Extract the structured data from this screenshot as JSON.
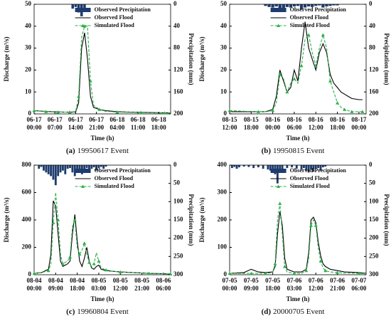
{
  "chart_data": [
    {
      "type": "line",
      "panel_label": "(a)",
      "caption": "19950617 Event",
      "x_label": "Time (h)",
      "y_label": "Discharge (m³/s)",
      "y2_label": "Precipitation (mm)",
      "xlim": [
        0,
        46
      ],
      "ylim": [
        0,
        50
      ],
      "y2lim": [
        0,
        200
      ],
      "yticks": [
        0,
        10,
        20,
        30,
        40,
        50
      ],
      "y2ticks": [
        0,
        40,
        80,
        120,
        160,
        200
      ],
      "xticks": [
        {
          "value": 0,
          "label": "06-17 00:00"
        },
        {
          "value": 7,
          "label": "06-17 07:00"
        },
        {
          "value": 14,
          "label": "06-17 14:00"
        },
        {
          "value": 21,
          "label": "06-17 21:00"
        },
        {
          "value": 28,
          "label": "06-18 04:00"
        },
        {
          "value": 35,
          "label": "06-18 11:00"
        },
        {
          "value": 42,
          "label": "06-18 18:00"
        }
      ],
      "series": [
        {
          "name": "Observed Precipitation",
          "type": "bar",
          "axis": "y2",
          "color": "#1f3c6e",
          "x": [
            13,
            14,
            15,
            16,
            17
          ],
          "values": [
            8,
            5,
            15,
            22,
            10
          ]
        },
        {
          "name": "Observed Flood",
          "color": "#000000",
          "x": [
            0,
            2,
            4,
            6,
            8,
            10,
            12,
            14,
            15,
            16,
            17,
            18,
            19,
            20,
            22,
            24,
            28,
            32,
            36,
            40,
            44,
            46
          ],
          "values": [
            1.5,
            1.3,
            1.1,
            1,
            0.9,
            0.8,
            0.8,
            0.8,
            5,
            30,
            37,
            25,
            8,
            3,
            2,
            1.5,
            1,
            0.8,
            0.7,
            0.6,
            0.5,
            0.5
          ]
        },
        {
          "name": "Simulated Flood",
          "color": "#2db04b",
          "dashed": true,
          "x": [
            0,
            2,
            4,
            6,
            8,
            10,
            12,
            14,
            15,
            16,
            17,
            18,
            19,
            20,
            22,
            24,
            28,
            32,
            36,
            40,
            44,
            46
          ],
          "values": [
            1.5,
            1.2,
            1,
            0.9,
            0.8,
            0.8,
            0.8,
            1,
            8,
            35,
            40,
            40,
            15,
            4,
            2,
            1.2,
            0.8,
            0.7,
            0.6,
            0.5,
            0.4,
            0.4
          ]
        }
      ]
    },
    {
      "type": "line",
      "panel_label": "(b)",
      "caption": "19950815 Event",
      "x_label": "Time (h)",
      "y_label": "Discharge (m³/s)",
      "y2_label": "Precipitation (mm)",
      "xlim": [
        0,
        38
      ],
      "ylim": [
        0,
        50
      ],
      "y2lim": [
        0,
        200
      ],
      "yticks": [
        0,
        10,
        20,
        30,
        40,
        50
      ],
      "y2ticks": [
        0,
        40,
        80,
        120,
        160,
        200
      ],
      "xticks": [
        {
          "value": 0,
          "label": "08-15 12:00"
        },
        {
          "value": 6,
          "label": "08-15 18:00"
        },
        {
          "value": 12,
          "label": "08-16 00:00"
        },
        {
          "value": 18,
          "label": "08-16 06:00"
        },
        {
          "value": 24,
          "label": "08-16 12:00"
        },
        {
          "value": 30,
          "label": "08-16 18:00"
        },
        {
          "value": 36,
          "label": "08-17 00:00"
        }
      ],
      "series": [
        {
          "name": "Observed Precipitation",
          "type": "bar",
          "axis": "y2",
          "color": "#1f3c6e",
          "x": [
            10,
            11,
            12,
            13,
            14,
            15,
            16,
            17,
            18,
            19,
            20,
            21,
            22,
            23,
            24,
            25,
            26,
            27,
            28,
            29,
            30
          ],
          "values": [
            3,
            5,
            6,
            4,
            8,
            7,
            5,
            6,
            4,
            3,
            9,
            6,
            4,
            5,
            3,
            2,
            6,
            4,
            3,
            2,
            2
          ]
        },
        {
          "name": "Observed Flood",
          "color": "#000000",
          "x": [
            0,
            4,
            8,
            10,
            12,
            13,
            14,
            15,
            16,
            17,
            18,
            19,
            20,
            21,
            22,
            23,
            24,
            25,
            26,
            27,
            28,
            29,
            30,
            31,
            32,
            33,
            34,
            36,
            37
          ],
          "values": [
            1,
            1,
            1,
            1,
            2,
            8,
            20,
            15,
            10,
            12,
            20,
            15,
            30,
            42,
            30,
            25,
            20,
            28,
            32,
            28,
            18,
            14,
            12,
            10,
            9,
            8,
            7,
            6.5,
            6.5
          ]
        },
        {
          "name": "Simulated Flood",
          "color": "#2db04b",
          "dashed": true,
          "x": [
            0,
            4,
            8,
            10,
            12,
            13,
            14,
            15,
            16,
            17,
            18,
            19,
            20,
            21,
            22,
            23,
            24,
            25,
            26,
            27,
            28,
            29,
            30,
            31,
            32,
            33,
            34,
            36,
            37
          ],
          "values": [
            1.5,
            1.2,
            1,
            1,
            1.5,
            5,
            18,
            16,
            10,
            14,
            16,
            14,
            22,
            34,
            36,
            28,
            22,
            30,
            36,
            30,
            15,
            10,
            5,
            3,
            2,
            1.5,
            1,
            1,
            1
          ]
        }
      ]
    },
    {
      "type": "line",
      "panel_label": "(c)",
      "caption": "19960804 Event",
      "x_label": "Time (h)",
      "y_label": "Discharge (m³/s)",
      "y2_label": "Precipitation (mm)",
      "xlim": [
        0,
        57
      ],
      "ylim": [
        0,
        800
      ],
      "y2lim": [
        0,
        300
      ],
      "yticks": [
        0,
        200,
        400,
        600,
        800
      ],
      "y2ticks": [
        0,
        50,
        100,
        150,
        200,
        250,
        300
      ],
      "xticks": [
        {
          "value": 0,
          "label": "08-04 00:00"
        },
        {
          "value": 9,
          "label": "08-04 09:00"
        },
        {
          "value": 18,
          "label": "08-04 18:00"
        },
        {
          "value": 27,
          "label": "08-05 03:00"
        },
        {
          "value": 36,
          "label": "08-05 12:00"
        },
        {
          "value": 45,
          "label": "08-05 21:00"
        },
        {
          "value": 54,
          "label": "08-06 06:00"
        }
      ],
      "series": [
        {
          "name": "Observed Precipitation",
          "type": "bar",
          "axis": "y2",
          "color": "#1f3c6e",
          "x": [
            2,
            3,
            4,
            5,
            6,
            7,
            8,
            9,
            10,
            11,
            12,
            13,
            14,
            15,
            16,
            17,
            18,
            19,
            20,
            21,
            22,
            23,
            24,
            25,
            26,
            27,
            28,
            29,
            30
          ],
          "values": [
            10,
            5,
            15,
            20,
            25,
            30,
            40,
            55,
            30,
            20,
            15,
            25,
            10,
            8,
            20,
            30,
            15,
            10,
            25,
            12,
            8,
            20,
            10,
            6,
            15,
            8,
            5,
            10,
            4
          ]
        },
        {
          "name": "Observed Flood",
          "color": "#000000",
          "x": [
            0,
            3,
            6,
            7,
            8,
            9,
            10,
            11,
            12,
            14,
            15,
            16,
            17,
            18,
            19,
            20,
            21,
            22,
            23,
            24,
            25,
            26,
            27,
            28,
            30,
            33,
            36,
            42,
            48,
            54,
            57
          ],
          "values": [
            10,
            15,
            40,
            150,
            540,
            500,
            300,
            100,
            60,
            80,
            100,
            300,
            440,
            250,
            100,
            60,
            120,
            200,
            100,
            50,
            40,
            60,
            70,
            40,
            30,
            25,
            20,
            15,
            10,
            8,
            5
          ]
        },
        {
          "name": "Simulated Flood",
          "color": "#2db04b",
          "dashed": true,
          "x": [
            0,
            3,
            6,
            7,
            8,
            9,
            10,
            11,
            12,
            14,
            15,
            16,
            17,
            18,
            19,
            20,
            21,
            22,
            23,
            24,
            25,
            26,
            27,
            28,
            30,
            33,
            36,
            42,
            48,
            54,
            57
          ],
          "values": [
            10,
            15,
            30,
            80,
            380,
            600,
            400,
            150,
            80,
            100,
            130,
            350,
            400,
            200,
            150,
            180,
            230,
            150,
            90,
            60,
            80,
            160,
            100,
            50,
            35,
            25,
            20,
            15,
            10,
            8,
            5
          ]
        }
      ]
    },
    {
      "type": "line",
      "panel_label": "(d)",
      "caption": "20000705 Event",
      "x_label": "Time (h)",
      "y_label": "Discharge (m³/s)",
      "y2_label": "Precipitation (mm)",
      "xlim": [
        0,
        57
      ],
      "ylim": [
        0,
        400
      ],
      "y2lim": [
        0,
        300
      ],
      "yticks": [
        0,
        100,
        200,
        300,
        400
      ],
      "y2ticks": [
        0,
        50,
        100,
        150,
        200,
        250,
        300
      ],
      "xticks": [
        {
          "value": 0,
          "label": "07-05 00:00"
        },
        {
          "value": 9,
          "label": "07-05 09:00"
        },
        {
          "value": 18,
          "label": "07-05 18:00"
        },
        {
          "value": 27,
          "label": "07-06 03:00"
        },
        {
          "value": 36,
          "label": "07-06 12:00"
        },
        {
          "value": 45,
          "label": "07-06 21:00"
        },
        {
          "value": 54,
          "label": "07-07 06:00"
        }
      ],
      "series": [
        {
          "name": "Observed Precipitation",
          "type": "bar",
          "axis": "y2",
          "color": "#1f3c6e",
          "x": [
            1,
            2,
            3,
            4,
            6,
            8,
            10,
            12,
            14,
            16,
            17,
            18,
            19,
            20,
            21,
            22,
            24,
            26,
            28,
            30,
            31,
            32,
            33,
            34,
            35,
            36,
            37,
            38,
            39,
            40
          ],
          "values": [
            8,
            5,
            10,
            6,
            4,
            5,
            8,
            6,
            10,
            12,
            15,
            20,
            25,
            50,
            20,
            10,
            8,
            6,
            10,
            12,
            8,
            15,
            20,
            12,
            18,
            10,
            8,
            15,
            6,
            4
          ]
        },
        {
          "name": "Observed Flood",
          "color": "#000000",
          "x": [
            0,
            6,
            9,
            12,
            15,
            18,
            19,
            20,
            21,
            22,
            23,
            24,
            27,
            30,
            32,
            33,
            34,
            35,
            36,
            37,
            38,
            39,
            40,
            42,
            45,
            48,
            54,
            57
          ],
          "values": [
            5,
            8,
            20,
            10,
            8,
            10,
            30,
            150,
            230,
            180,
            60,
            20,
            10,
            10,
            20,
            80,
            200,
            210,
            190,
            120,
            70,
            40,
            30,
            20,
            15,
            10,
            8,
            5
          ]
        },
        {
          "name": "Simulated Flood",
          "color": "#2db04b",
          "dashed": true,
          "x": [
            0,
            6,
            9,
            12,
            15,
            18,
            19,
            20,
            21,
            22,
            23,
            24,
            27,
            30,
            32,
            33,
            34,
            35,
            36,
            37,
            38,
            39,
            40,
            42,
            45,
            48,
            54,
            57
          ],
          "values": [
            5,
            5,
            5,
            5,
            5,
            8,
            40,
            200,
            260,
            150,
            30,
            10,
            5,
            5,
            15,
            60,
            180,
            200,
            180,
            100,
            50,
            25,
            15,
            10,
            8,
            6,
            5,
            4
          ]
        }
      ]
    }
  ]
}
